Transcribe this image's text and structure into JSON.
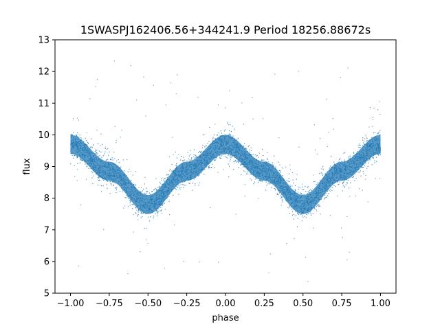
{
  "chart_data": {
    "type": "scatter",
    "title": "1SWASPJ162406.56+344241.9 Period 18256.88672s",
    "xlabel": "phase",
    "ylabel": "flux",
    "xlim": [
      -1.1,
      1.1
    ],
    "ylim": [
      5,
      13
    ],
    "xticks": [
      -1.0,
      -0.75,
      -0.5,
      -0.25,
      0.0,
      0.25,
      0.5,
      0.75,
      1.0
    ],
    "xtick_labels": [
      "−1.00",
      "−0.75",
      "−0.50",
      "−0.25",
      "0.00",
      "0.25",
      "0.50",
      "0.75",
      "1.00"
    ],
    "yticks": [
      5,
      6,
      7,
      8,
      9,
      10,
      11,
      12,
      13
    ],
    "ytick_labels": [
      "5",
      "6",
      "7",
      "8",
      "9",
      "10",
      "11",
      "12",
      "13"
    ],
    "grid": false,
    "legend": "none",
    "marker_color": "#1f77b4",
    "series_description_points": [
      {
        "x": -1.0,
        "y": 9.7
      },
      {
        "x": -0.75,
        "y": 8.85
      },
      {
        "x": -0.5,
        "y": 7.8
      },
      {
        "x": -0.25,
        "y": 8.85
      },
      {
        "x": 0.0,
        "y": 9.7
      },
      {
        "x": 0.25,
        "y": 8.85
      },
      {
        "x": 0.5,
        "y": 7.8
      },
      {
        "x": 0.75,
        "y": 8.85
      },
      {
        "x": 1.0,
        "y": 9.7
      }
    ],
    "band_halfwidth": 0.4,
    "phase_range": [
      -1.0,
      1.0
    ]
  }
}
